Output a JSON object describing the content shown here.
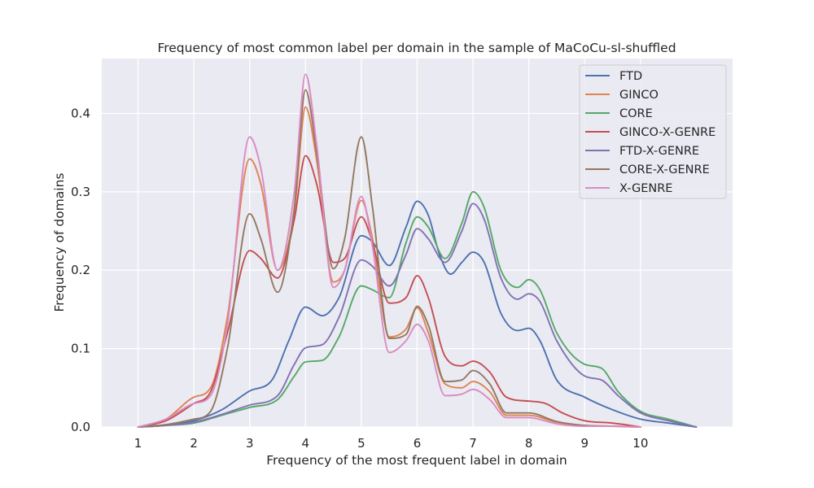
{
  "chart_data": {
    "type": "line",
    "title": "Frequency of most common label per domain in the sample of MaCoCu-sl-shuffled",
    "xlabel": "Frequency of the most frequent label in domain",
    "ylabel": "Frequency of domains",
    "xlim": [
      0.35,
      11.65
    ],
    "ylim": [
      0,
      0.47
    ],
    "xticks": [
      "1",
      "2",
      "3",
      "4",
      "5",
      "6",
      "7",
      "8",
      "9",
      "10"
    ],
    "yticks": [
      "0.0",
      "0.1",
      "0.2",
      "0.3",
      "0.4"
    ],
    "grid": true,
    "legend_position": "top-right",
    "series": [
      {
        "name": "FTD",
        "color": "#4c72b0",
        "x": [
          1,
          1.5,
          2,
          2.5,
          3,
          3.4,
          3.7,
          4,
          4.3,
          4.6,
          5,
          5.2,
          5.5,
          5.8,
          6,
          6.2,
          6.4,
          6.6,
          6.8,
          7,
          7.2,
          7.5,
          7.8,
          8,
          8.2,
          8.5,
          9,
          9.5,
          10,
          10.5,
          11
        ],
        "y": [
          0,
          0.002,
          0.008,
          0.022,
          0.046,
          0.06,
          0.11,
          0.153,
          0.142,
          0.165,
          0.244,
          0.236,
          0.206,
          0.255,
          0.288,
          0.27,
          0.22,
          0.195,
          0.21,
          0.223,
          0.21,
          0.145,
          0.123,
          0.126,
          0.11,
          0.06,
          0.038,
          0.022,
          0.01,
          0.005,
          0
        ]
      },
      {
        "name": "GINCO",
        "color": "#dd8452",
        "x": [
          1,
          1.5,
          2,
          2.3,
          2.6,
          3,
          3.2,
          3.5,
          3.8,
          4,
          4.2,
          4.5,
          4.7,
          5,
          5.2,
          5.5,
          5.8,
          6,
          6.2,
          6.5,
          6.8,
          7,
          7.3,
          7.6,
          8,
          8.5,
          9,
          9.5,
          10
        ],
        "y": [
          0,
          0.01,
          0.038,
          0.05,
          0.14,
          0.342,
          0.31,
          0.2,
          0.275,
          0.408,
          0.34,
          0.185,
          0.2,
          0.289,
          0.24,
          0.115,
          0.125,
          0.152,
          0.12,
          0.055,
          0.05,
          0.058,
          0.045,
          0.015,
          0.015,
          0.006,
          0.002,
          0.001,
          0
        ]
      },
      {
        "name": "CORE",
        "color": "#55a868",
        "x": [
          1,
          1.5,
          2,
          2.5,
          3,
          3.5,
          3.8,
          4,
          4.3,
          4.6,
          5,
          5.2,
          5.5,
          5.8,
          6,
          6.2,
          6.5,
          6.8,
          7,
          7.2,
          7.5,
          7.8,
          8,
          8.2,
          8.5,
          9,
          9.3,
          9.6,
          10,
          10.5,
          11
        ],
        "y": [
          0,
          0.002,
          0.005,
          0.015,
          0.025,
          0.035,
          0.065,
          0.083,
          0.085,
          0.115,
          0.18,
          0.175,
          0.165,
          0.235,
          0.268,
          0.255,
          0.215,
          0.26,
          0.3,
          0.28,
          0.2,
          0.178,
          0.188,
          0.175,
          0.12,
          0.08,
          0.075,
          0.045,
          0.02,
          0.01,
          0
        ]
      },
      {
        "name": "GINCO-X-GENRE",
        "color": "#c44e52",
        "x": [
          1,
          1.5,
          2,
          2.3,
          2.6,
          3,
          3.2,
          3.5,
          3.8,
          4,
          4.2,
          4.5,
          4.7,
          5,
          5.2,
          5.5,
          5.8,
          6,
          6.2,
          6.5,
          6.8,
          7,
          7.3,
          7.6,
          8,
          8.3,
          8.6,
          9,
          9.5,
          10
        ],
        "y": [
          0,
          0.008,
          0.03,
          0.045,
          0.12,
          0.225,
          0.215,
          0.19,
          0.265,
          0.346,
          0.31,
          0.21,
          0.215,
          0.268,
          0.235,
          0.158,
          0.165,
          0.193,
          0.165,
          0.09,
          0.078,
          0.084,
          0.07,
          0.038,
          0.033,
          0.03,
          0.018,
          0.008,
          0.005,
          0
        ]
      },
      {
        "name": "FTD-X-GENRE",
        "color": "#8172b3",
        "x": [
          1,
          1.5,
          2,
          2.5,
          3,
          3.5,
          3.8,
          4,
          4.3,
          4.6,
          5,
          5.2,
          5.5,
          5.8,
          6,
          6.2,
          6.5,
          6.8,
          7,
          7.2,
          7.5,
          7.8,
          8,
          8.2,
          8.5,
          9,
          9.3,
          9.6,
          10,
          10.5,
          11
        ],
        "y": [
          0,
          0.002,
          0.006,
          0.016,
          0.028,
          0.04,
          0.08,
          0.101,
          0.105,
          0.14,
          0.213,
          0.205,
          0.18,
          0.22,
          0.253,
          0.24,
          0.21,
          0.25,
          0.285,
          0.265,
          0.19,
          0.163,
          0.17,
          0.16,
          0.11,
          0.065,
          0.06,
          0.04,
          0.018,
          0.008,
          0
        ]
      },
      {
        "name": "CORE-X-GENRE",
        "color": "#937860",
        "x": [
          1,
          1.5,
          2,
          2.3,
          2.6,
          3,
          3.2,
          3.5,
          3.8,
          4,
          4.2,
          4.5,
          4.7,
          5,
          5.2,
          5.5,
          5.8,
          6,
          6.2,
          6.5,
          6.8,
          7,
          7.3,
          7.6,
          8,
          8.5,
          9,
          9.5,
          10
        ],
        "y": [
          0,
          0.003,
          0.01,
          0.02,
          0.1,
          0.272,
          0.24,
          0.172,
          0.28,
          0.43,
          0.35,
          0.202,
          0.24,
          0.37,
          0.28,
          0.113,
          0.118,
          0.154,
          0.13,
          0.058,
          0.06,
          0.072,
          0.055,
          0.018,
          0.018,
          0.007,
          0.002,
          0.001,
          0
        ]
      },
      {
        "name": "X-GENRE",
        "color": "#da8bc3",
        "x": [
          1,
          1.5,
          2,
          2.3,
          2.6,
          3,
          3.2,
          3.5,
          3.8,
          4,
          4.2,
          4.5,
          4.7,
          5,
          5.2,
          5.5,
          5.8,
          6,
          6.2,
          6.5,
          6.8,
          7,
          7.3,
          7.6,
          8,
          8.5,
          9,
          9.5,
          10
        ],
        "y": [
          0,
          0.01,
          0.03,
          0.04,
          0.13,
          0.37,
          0.33,
          0.2,
          0.3,
          0.45,
          0.36,
          0.178,
          0.2,
          0.294,
          0.23,
          0.095,
          0.11,
          0.131,
          0.11,
          0.04,
          0.042,
          0.048,
          0.035,
          0.012,
          0.012,
          0.004,
          0.001,
          0.001,
          0
        ]
      }
    ]
  }
}
